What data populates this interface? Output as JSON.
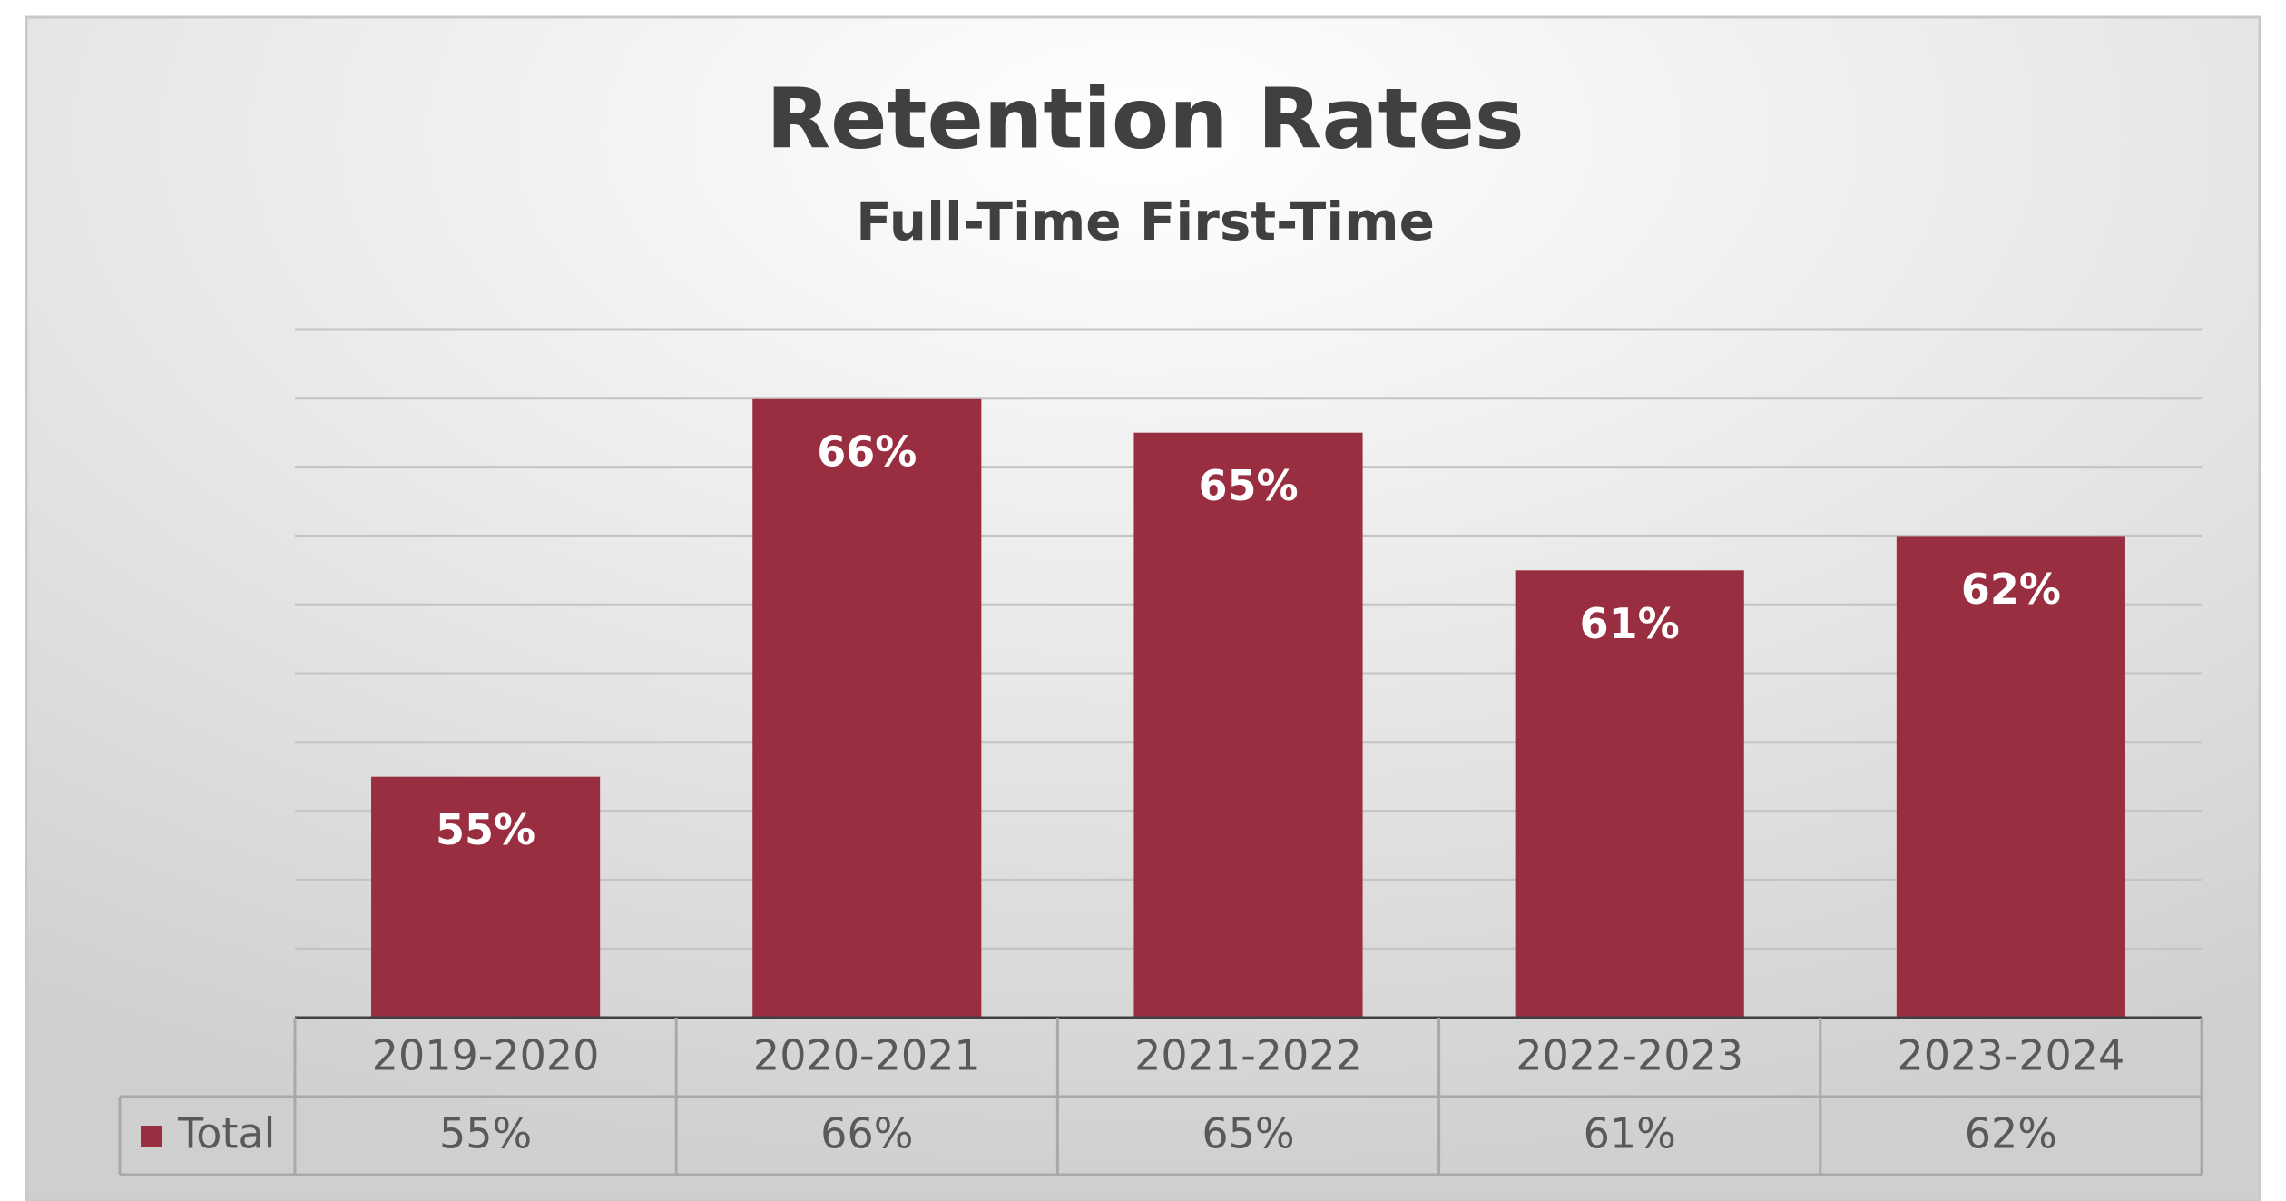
{
  "chart_data": {
    "type": "bar",
    "title": "Retention Rates",
    "subtitle": "Full-Time First-Time",
    "categories": [
      "2019-2020",
      "2020-2021",
      "2021-2022",
      "2022-2023",
      "2023-2024"
    ],
    "series": [
      {
        "name": "Total",
        "color": "#992e41",
        "values": [
          55,
          66,
          65,
          61,
          62
        ],
        "value_labels": [
          "55%",
          "66%",
          "65%",
          "61%",
          "62%"
        ]
      }
    ],
    "ylim": [
      48,
      68
    ],
    "yticks": [
      48,
      50,
      52,
      54,
      56,
      58,
      60,
      62,
      64,
      66,
      68
    ],
    "grid": true,
    "data_table": true
  }
}
